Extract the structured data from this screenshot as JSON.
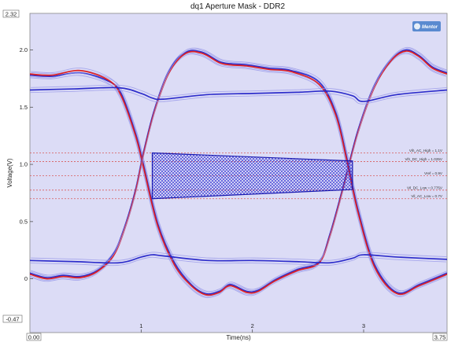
{
  "chart_data": {
    "type": "line",
    "title": "dq1 Aperture Mask - DDR2",
    "xlabel": "Time(ns)",
    "ylabel": "Voltage(V)",
    "xlim": [
      0.0,
      3.75
    ],
    "ylim": [
      -0.47,
      2.32
    ],
    "x_range_labels": [
      "0.00",
      "3.75"
    ],
    "y_range_labels": [
      "2.32",
      "-0.47"
    ],
    "x_ticks": [
      1,
      2,
      3
    ],
    "x_tick_labels": [
      "1",
      "2",
      "3"
    ],
    "y_ticks": [
      0.0,
      0.5,
      1.0,
      1.5,
      2.0
    ],
    "y_tick_labels": [
      "0",
      "0.5",
      "1.0",
      "1.5",
      "2.0"
    ],
    "grid": false,
    "logo_text": "Mentor",
    "colors": {
      "background": "#dcdcf6",
      "eye_blue": "#2424c8",
      "eye_red": "#e01818",
      "eye_light": "#9a9aea",
      "threshold": "#d85a5a",
      "mask_outline": "#1a1ab0",
      "mask_hatch": "#2a2ad0"
    },
    "thresholds": [
      {
        "label": "Vih_AC_High = 1.1V",
        "value": 1.1
      },
      {
        "label": "Vih_DC_High = 1.025V",
        "value": 1.025
      },
      {
        "label": "Vref = 0.9V",
        "value": 0.9
      },
      {
        "label": "Vil_DC_Low = 0.775V",
        "value": 0.775
      },
      {
        "label": "Vil_AC_Low = 0.7V",
        "value": 0.7
      }
    ],
    "mask": {
      "points": [
        [
          1.1,
          1.1
        ],
        [
          2.9,
          1.03
        ],
        [
          2.9,
          0.78
        ],
        [
          1.1,
          0.7
        ]
      ]
    },
    "series": [
      {
        "color": "#2424c8",
        "x": [
          0.0,
          0.2,
          0.45,
          0.7,
          0.82,
          0.95,
          1.02,
          1.15,
          1.3,
          1.45,
          1.58,
          1.7,
          1.8,
          1.95,
          2.05,
          2.2,
          2.4,
          2.6,
          2.7,
          2.82,
          2.95,
          3.1,
          3.25,
          3.38,
          3.5,
          3.62,
          3.75
        ],
        "y": [
          1.78,
          1.77,
          1.8,
          1.73,
          1.62,
          1.27,
          1.0,
          0.48,
          0.14,
          -0.05,
          -0.13,
          -0.11,
          -0.05,
          -0.11,
          -0.1,
          -0.01,
          0.08,
          0.15,
          0.4,
          0.82,
          1.3,
          1.7,
          1.92,
          2.0,
          1.95,
          1.85,
          1.8
        ]
      },
      {
        "color": "#e01818",
        "x": [
          0.0,
          0.2,
          0.45,
          0.7,
          0.82,
          0.95,
          1.02,
          1.15,
          1.3,
          1.45,
          1.58,
          1.7,
          1.8,
          1.95,
          2.05,
          2.2,
          2.4,
          2.6,
          2.7,
          2.82,
          2.95,
          3.1,
          3.25,
          3.38,
          3.5,
          3.62,
          3.75
        ],
        "y": [
          1.79,
          1.78,
          1.82,
          1.74,
          1.6,
          1.25,
          0.98,
          0.46,
          0.12,
          -0.06,
          -0.14,
          -0.12,
          -0.06,
          -0.12,
          -0.11,
          -0.02,
          0.07,
          0.14,
          0.38,
          0.8,
          1.28,
          1.68,
          1.91,
          1.99,
          1.94,
          1.84,
          1.79
        ]
      },
      {
        "color": "#2424c8",
        "x": [
          0.0,
          0.15,
          0.3,
          0.45,
          0.6,
          0.75,
          0.85,
          0.95,
          1.02,
          1.12,
          1.25,
          1.4,
          1.55,
          1.7,
          1.8,
          1.95,
          2.15,
          2.35,
          2.6,
          2.75,
          2.85,
          2.95,
          3.1,
          3.3,
          3.5,
          3.75
        ],
        "y": [
          0.05,
          0.01,
          0.03,
          0.02,
          0.07,
          0.22,
          0.45,
          0.78,
          1.1,
          1.48,
          1.82,
          1.98,
          1.98,
          1.9,
          1.88,
          1.87,
          1.84,
          1.82,
          1.72,
          1.45,
          1.05,
          0.6,
          0.12,
          -0.12,
          -0.05,
          0.05
        ]
      },
      {
        "color": "#e01818",
        "x": [
          0.0,
          0.15,
          0.3,
          0.45,
          0.6,
          0.75,
          0.85,
          0.95,
          1.02,
          1.12,
          1.25,
          1.4,
          1.55,
          1.7,
          1.8,
          1.95,
          2.15,
          2.35,
          2.6,
          2.75,
          2.85,
          2.95,
          3.1,
          3.3,
          3.5,
          3.75
        ],
        "y": [
          0.04,
          0.0,
          0.02,
          0.01,
          0.06,
          0.2,
          0.43,
          0.76,
          1.08,
          1.46,
          1.8,
          1.97,
          1.97,
          1.89,
          1.87,
          1.86,
          1.83,
          1.81,
          1.7,
          1.43,
          1.03,
          0.58,
          0.1,
          -0.13,
          -0.06,
          0.04
        ]
      },
      {
        "color": "#2424c8",
        "x": [
          0.0,
          0.4,
          0.8,
          1.0,
          1.1,
          1.2,
          1.6,
          2.0,
          2.4,
          2.7,
          2.9,
          3.0,
          3.3,
          3.75
        ],
        "y": [
          1.65,
          1.66,
          1.67,
          1.62,
          1.58,
          1.57,
          1.61,
          1.62,
          1.63,
          1.64,
          1.6,
          1.55,
          1.61,
          1.65
        ]
      },
      {
        "color": "#2424c8",
        "x": [
          0.0,
          0.4,
          0.8,
          1.0,
          1.1,
          1.2,
          1.6,
          2.0,
          2.4,
          2.7,
          2.9,
          3.0,
          3.3,
          3.75
        ],
        "y": [
          0.16,
          0.15,
          0.14,
          0.19,
          0.21,
          0.2,
          0.16,
          0.16,
          0.15,
          0.14,
          0.18,
          0.21,
          0.19,
          0.17
        ]
      }
    ]
  }
}
